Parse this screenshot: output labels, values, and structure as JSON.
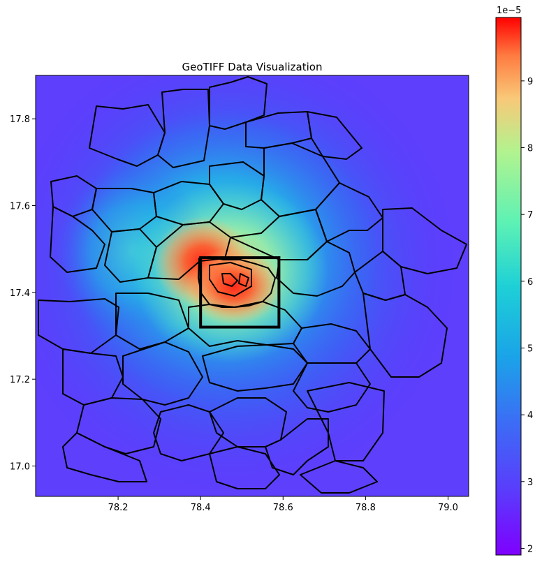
{
  "chart_data": {
    "type": "heatmap",
    "title": "GeoTIFF Data Visualization",
    "xlabel": "",
    "ylabel": "",
    "xlim": [
      78.0,
      79.05
    ],
    "ylim": [
      16.93,
      17.9
    ],
    "x_ticks": [
      78.2,
      78.4,
      78.6,
      78.8,
      79.0
    ],
    "x_tick_labels": [
      "78.2",
      "78.4",
      "78.6",
      "78.8",
      "79.0"
    ],
    "y_ticks": [
      17.0,
      17.2,
      17.4,
      17.6,
      17.8
    ],
    "y_tick_labels": [
      "17.0",
      "17.2",
      "17.4",
      "17.6",
      "17.8"
    ],
    "colormap": "rainbow",
    "colorbar": {
      "min": 1.9,
      "max": 9.95,
      "multiplier_label": "1e−5",
      "ticks": [
        2,
        3,
        4,
        5,
        6,
        7,
        8,
        9
      ],
      "tick_labels": [
        "2",
        "3",
        "4",
        "5",
        "6",
        "7",
        "8",
        "9"
      ]
    },
    "hotspots": [
      {
        "x": 78.36,
        "y": 17.46,
        "value": 9.9
      },
      {
        "x": 78.47,
        "y": 17.4,
        "value": 9.7
      }
    ],
    "highlight_rectangle": {
      "x0": 78.4,
      "x1": 78.59,
      "y0": 17.32,
      "y1": 17.48
    },
    "boundary_color": "#000000"
  }
}
